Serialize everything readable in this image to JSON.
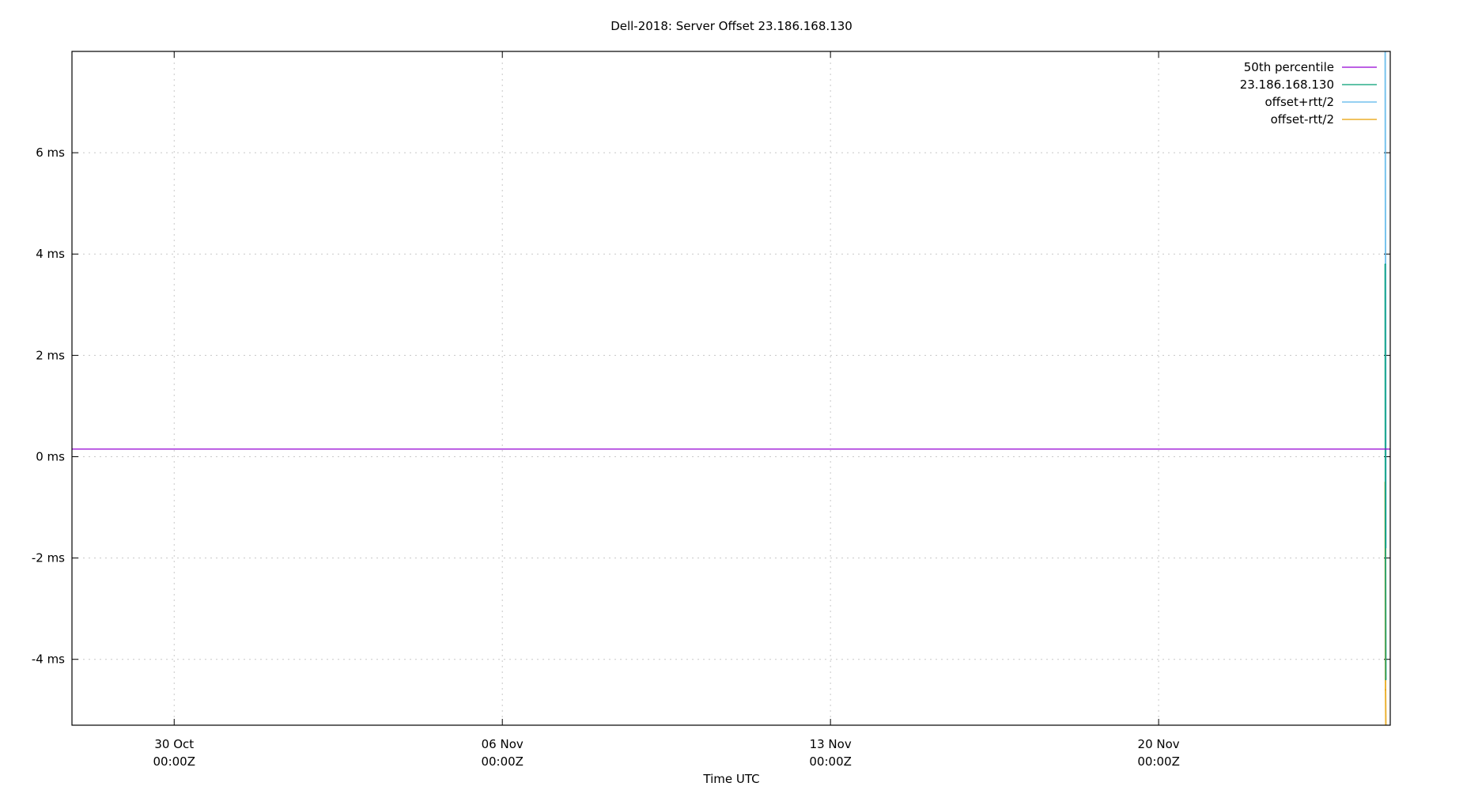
{
  "chart_data": {
    "type": "line",
    "title": "Dell-2018: Server Offset 23.186.168.130",
    "xlabel": "Time UTC",
    "ylabel": "",
    "xlim": [
      "2023-10-27T19:40Z",
      "2023-11-24T22:35Z"
    ],
    "ylim": [
      -5.3,
      8.0
    ],
    "grid": true,
    "legend_position": "top-right",
    "x_ticks": [
      {
        "date": "2023-10-30T00:00Z",
        "line1": "30 Oct",
        "line2": "00:00Z"
      },
      {
        "date": "2023-11-06T00:00Z",
        "line1": "06 Nov",
        "line2": "00:00Z"
      },
      {
        "date": "2023-11-13T00:00Z",
        "line1": "13 Nov",
        "line2": "00:00Z"
      },
      {
        "date": "2023-11-20T00:00Z",
        "line1": "20 Nov",
        "line2": "00:00Z"
      }
    ],
    "y_ticks": [
      {
        "value": 6,
        "label": "6 ms"
      },
      {
        "value": 4,
        "label": "4 ms"
      },
      {
        "value": 2,
        "label": "2 ms"
      },
      {
        "value": 0,
        "label": "0 ms"
      },
      {
        "value": -2,
        "label": "-2 ms"
      },
      {
        "value": -4,
        "label": "-4 ms"
      }
    ],
    "series": [
      {
        "name": "50th percentile",
        "color": "#9400d3",
        "style": "hline",
        "value": 0.15
      },
      {
        "name": "23.186.168.130",
        "color": "#009e73",
        "x": [
          "2023-11-24T20:00Z",
          "2023-11-24T20:10Z",
          "2023-11-24T20:20Z"
        ],
        "y": [
          3.8,
          -2.0,
          -4.4
        ]
      },
      {
        "name": "offset+rtt/2",
        "color": "#56b4e9",
        "x": [
          "2023-11-24T20:00Z",
          "2023-11-24T20:10Z",
          "2023-11-24T20:20Z"
        ],
        "y": [
          8.0,
          3.8,
          -1.8
        ]
      },
      {
        "name": "offset-rtt/2",
        "color": "#e69f00",
        "x": [
          "2023-11-24T20:00Z",
          "2023-11-24T20:10Z",
          "2023-11-24T20:20Z"
        ],
        "y": [
          -0.5,
          -4.6,
          -5.3
        ]
      }
    ]
  }
}
